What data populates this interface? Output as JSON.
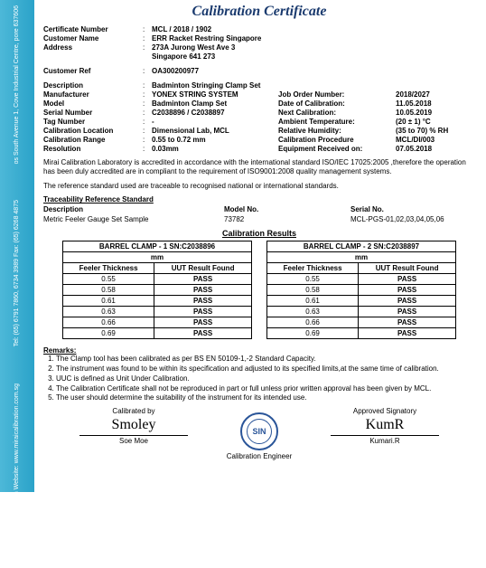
{
  "title": "Calibration Certificate",
  "sidebar": {
    "block1": "os South Avenue 1,\nCove Industrial Centre,\npore 637606",
    "block2": "Tel: (65) 6791 7860, 6734 3989\nFax: (65) 6268 4875",
    "block3": "Email: miraical@gmail.com\nWebsite: www.miraicalibration.com.sg"
  },
  "header": {
    "certNo": {
      "label": "Certificate Number",
      "value": "MCL / 2018 / 1902"
    },
    "customer": {
      "label": "Customer Name",
      "value": "ERR Racket Restring Singapore"
    },
    "address": {
      "label": "Address",
      "value1": "273A Jurong West Ave 3",
      "value2": "Singapore 641 273"
    },
    "custRef": {
      "label": "Customer Ref",
      "value": "OA300200977"
    }
  },
  "details": {
    "description": {
      "label": "Description",
      "value": "Badminton Stringing Clamp Set"
    },
    "left": {
      "manufacturer": {
        "label": "Manufacturer",
        "value": "YONEX STRING SYSTEM"
      },
      "model": {
        "label": "Model",
        "value": "Badminton Clamp Set"
      },
      "serial": {
        "label": "Serial Number",
        "value": "C2038896 / C2038897"
      },
      "tag": {
        "label": "Tag Number",
        "value": "-"
      },
      "location": {
        "label": "Calibration Location",
        "value": "Dimensional Lab, MCL"
      },
      "range": {
        "label": "Calibration Range",
        "value": "0.55 to 0.72 mm"
      },
      "resolution": {
        "label": "Resolution",
        "value": "0.03mm"
      }
    },
    "right": {
      "jobOrder": {
        "label": "Job Order Number:",
        "value": "2018/2027"
      },
      "dateCal": {
        "label": "Date of Calibration:",
        "value": "11.05.2018"
      },
      "nextCal": {
        "label": "Next Calibration:",
        "value": "10.05.2019"
      },
      "ambTemp": {
        "label": "Ambient Temperature:",
        "value": "(20 ± 1) °C"
      },
      "relHum": {
        "label": "Relative Humidity:",
        "value": "(35 to 70) % RH"
      },
      "calProc": {
        "label": "Calibration Procedure",
        "value": "MCL/DI/003"
      },
      "eqRecv": {
        "label": "Equipment Received on:",
        "value": "07.05.2018"
      }
    }
  },
  "bodyText1": "Mirai Calibration Laboratory is accredited in accordance with the international standard ISO/IEC 17025:2005 ,therefore the operation has been duly accredited are in compliant to the requirement of ISO9001:2008 quality management systems.",
  "bodyText2": "The reference standard used are traceable to recognised national or international standards.",
  "trace": {
    "title": "Traceability Reference Standard",
    "h1": "Description",
    "h2": "Model No.",
    "h3": "Serial No.",
    "d1": "Metric Feeler Gauge Set Sample",
    "d2": "73782",
    "d3": "MCL-PGS-01,02,03,04,05,06"
  },
  "results": {
    "title": "Calibration Results",
    "table1": {
      "caption": "BARREL CLAMP - 1 SN:C2038896",
      "unit": "mm",
      "h1": "Feeler Thickness",
      "h2": "UUT Result Found",
      "rows": [
        {
          "t": "0.55",
          "r": "PASS"
        },
        {
          "t": "0.58",
          "r": "PASS"
        },
        {
          "t": "0.61",
          "r": "PASS"
        },
        {
          "t": "0.63",
          "r": "PASS"
        },
        {
          "t": "0.66",
          "r": "PASS"
        },
        {
          "t": "0.69",
          "r": "PASS"
        }
      ]
    },
    "table2": {
      "caption": "BARREL CLAMP - 2 SN:C2038897",
      "unit": "mm",
      "h1": "Feeler Thickness",
      "h2": "UUT Result Found",
      "rows": [
        {
          "t": "0.55",
          "r": "PASS"
        },
        {
          "t": "0.58",
          "r": "PASS"
        },
        {
          "t": "0.61",
          "r": "PASS"
        },
        {
          "t": "0.63",
          "r": "PASS"
        },
        {
          "t": "0.66",
          "r": "PASS"
        },
        {
          "t": "0.69",
          "r": "PASS"
        }
      ]
    }
  },
  "remarks": {
    "title": "Remarks:",
    "items": [
      "The Clamp tool has been calibrated as per BS EN 50109-1,-2 Standard Capacity.",
      "The instrument was found to be within its specification and adjusted to its specified limits,at the same time of calibration.",
      "UUC is defined as Unit Under Calibration.",
      "The Calibration Certificate shall not be reproduced in part or full unless prior written approval has been given by MCL.",
      "The user should determine the suitability of the instrument for its intended use."
    ]
  },
  "sign": {
    "leftTitle": "Calibrated by",
    "leftSig": "Smoley",
    "leftName": "Soe Moe",
    "rightTitle": "Approved Signatory",
    "rightSig": "KumR",
    "rightName": "Kumari.R",
    "seal": "SIN",
    "footer": "Calibration Engineer"
  }
}
